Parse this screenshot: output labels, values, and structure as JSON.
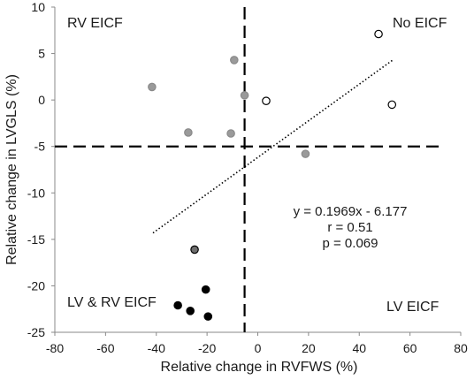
{
  "chart_data": {
    "type": "scatter",
    "xlabel": "Relative change in RVFWS (%)",
    "ylabel": "Relative change in LVGLS (%)",
    "xlim": [
      -80,
      80
    ],
    "ylim": [
      -25,
      10
    ],
    "x_ticks": [
      -80,
      -60,
      -40,
      -20,
      0,
      20,
      40,
      60,
      80
    ],
    "y_ticks": [
      -25,
      -20,
      -15,
      -10,
      -5,
      0,
      5,
      10
    ],
    "grid": false,
    "series": [
      {
        "group": "open",
        "fill": "#ffffff",
        "stroke": "#000000",
        "points": [
          {
            "x": 47.6,
            "y": 7.1
          },
          {
            "x": 3.3,
            "y": -0.1
          },
          {
            "x": 52.9,
            "y": -0.5
          }
        ]
      },
      {
        "group": "light-gray",
        "fill": "#9a9a9a",
        "stroke": "#8a8a8a",
        "points": [
          {
            "x": -41.7,
            "y": 1.4
          },
          {
            "x": -9.3,
            "y": 4.3
          },
          {
            "x": -5.2,
            "y": 0.5
          },
          {
            "x": -27.4,
            "y": -3.5
          },
          {
            "x": -10.6,
            "y": -3.6
          },
          {
            "x": 18.8,
            "y": -5.8
          }
        ]
      },
      {
        "group": "dark-gray",
        "fill": "#6e6e6e",
        "stroke": "#000000",
        "points": [
          {
            "x": -24.9,
            "y": -16.1
          }
        ]
      },
      {
        "group": "black",
        "fill": "#000000",
        "stroke": "#000000",
        "points": [
          {
            "x": -31.5,
            "y": -22.1
          },
          {
            "x": -26.6,
            "y": -22.7
          },
          {
            "x": -20.5,
            "y": -20.4
          },
          {
            "x": -19.6,
            "y": -23.3
          }
        ]
      }
    ],
    "trendline": {
      "slope": 0.1969,
      "intercept": -6.177,
      "x_from": -41.3,
      "x_to": 53.4,
      "style": "dotted"
    },
    "reference_lines": [
      {
        "axis": "x",
        "value": -5.2,
        "style": "dashed"
      },
      {
        "axis": "y",
        "value": -5.0,
        "style": "dashed"
      }
    ],
    "annotations": {
      "equation": "y = 0.1969x - 6.177",
      "r": "r = 0.51",
      "p": "p = 0.069"
    },
    "quadrant_labels": {
      "top_left": "RV EICF",
      "top_right": "No EICF",
      "bottom_left": "LV & RV EICF",
      "bottom_right": "LV EICF"
    }
  }
}
